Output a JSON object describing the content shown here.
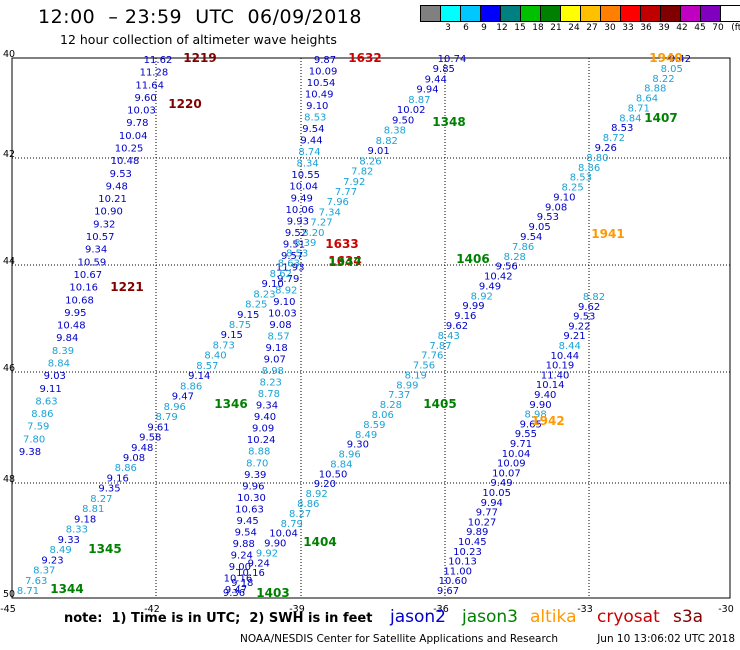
{
  "header": {
    "title": "12:00  – 23:59  UTC  06/09/2018",
    "subtitle": "12 hour collection of altimeter wave heights"
  },
  "colorbar": {
    "colors": [
      "#808080",
      "#00ffff",
      "#00c8ff",
      "#0000ff",
      "#008080",
      "#00c000",
      "#008000",
      "#ffff00",
      "#ffc000",
      "#ff8000",
      "#ff0000",
      "#c00000",
      "#800000",
      "#c000c0",
      "#8000c0",
      "#ffffff",
      "#000000"
    ],
    "labels": [
      "",
      "3",
      "6",
      "9",
      "12",
      "15",
      "18",
      "21",
      "24",
      "27",
      "30",
      "33",
      "36",
      "39",
      "42",
      "45",
      "70"
    ],
    "unit": "(ft)"
  },
  "axes": {
    "lat_labels": [
      "40",
      "42",
      "44",
      "46",
      "48",
      "50"
    ],
    "lon_labels": [
      "-45",
      "-42",
      "-39",
      "-36",
      "-33",
      "-30"
    ]
  },
  "track_colors": {
    "jason2": "#0000c8",
    "jason2_light": "#1aa3d6",
    "jason3": "#008000",
    "altika": "#ff9900",
    "cryosat": "#cc0000",
    "s3a": "#800000"
  },
  "pass_times": [
    {
      "text": "1219",
      "color": "s3a"
    },
    {
      "text": "1220",
      "color": "s3a"
    },
    {
      "text": "1221",
      "color": "s3a"
    },
    {
      "text": "1632",
      "color": "cryosat"
    },
    {
      "text": "1633",
      "color": "cryosat"
    },
    {
      "text": "1634",
      "color": "cryosat"
    },
    {
      "text": "1348",
      "color": "jason3"
    },
    {
      "text": "1347",
      "color": "jason3"
    },
    {
      "text": "1346",
      "color": "jason3"
    },
    {
      "text": "1345",
      "color": "jason3"
    },
    {
      "text": "1344",
      "color": "jason3"
    },
    {
      "text": "1405",
      "color": "jason3"
    },
    {
      "text": "1404",
      "color": "jason3"
    },
    {
      "text": "1403",
      "color": "jason3"
    },
    {
      "text": "1406",
      "color": "jason3"
    },
    {
      "text": "1407",
      "color": "jason3"
    },
    {
      "text": "1940",
      "color": "altika"
    },
    {
      "text": "1941",
      "color": "altika"
    },
    {
      "text": "1942",
      "color": "altika"
    }
  ],
  "tracks": {
    "s3a_track": [
      {
        "v": "11.62",
        "c": "d"
      },
      {
        "v": "11.28",
        "c": "d"
      },
      {
        "v": "11.64",
        "c": "d"
      },
      {
        "v": "9.60",
        "c": "d"
      },
      {
        "v": "10.03",
        "c": "d"
      },
      {
        "v": "9.78",
        "c": "d"
      },
      {
        "v": "10.04",
        "c": "d"
      },
      {
        "v": "10.25",
        "c": "d"
      },
      {
        "v": "10.48",
        "c": "d"
      },
      {
        "v": "9.53",
        "c": "d"
      },
      {
        "v": "9.48",
        "c": "d"
      },
      {
        "v": "10.21",
        "c": "d"
      },
      {
        "v": "10.90",
        "c": "d"
      },
      {
        "v": "9.32",
        "c": "d"
      },
      {
        "v": "10.57",
        "c": "d"
      },
      {
        "v": "9.34",
        "c": "d"
      },
      {
        "v": "10.59",
        "c": "d"
      },
      {
        "v": "10.67",
        "c": "d"
      },
      {
        "v": "10.16",
        "c": "d"
      },
      {
        "v": "10.68",
        "c": "d"
      },
      {
        "v": "9.95",
        "c": "d"
      },
      {
        "v": "10.48",
        "c": "d"
      },
      {
        "v": "9.84",
        "c": "d"
      },
      {
        "v": "8.39",
        "c": "l"
      },
      {
        "v": "8.84",
        "c": "l"
      },
      {
        "v": "9.03",
        "c": "d"
      },
      {
        "v": "9.11",
        "c": "d"
      },
      {
        "v": "8.63",
        "c": "l"
      },
      {
        "v": "8.86",
        "c": "l"
      },
      {
        "v": "7.59",
        "c": "l"
      },
      {
        "v": "7.80",
        "c": "l"
      },
      {
        "v": "9.38",
        "c": "d"
      }
    ],
    "cryosat_track": [
      {
        "v": "9.87",
        "c": "d"
      },
      {
        "v": "10.09",
        "c": "d"
      },
      {
        "v": "10.54",
        "c": "d"
      },
      {
        "v": "10.49",
        "c": "d"
      },
      {
        "v": "9.10",
        "c": "d"
      },
      {
        "v": "8.53",
        "c": "l"
      },
      {
        "v": "9.54",
        "c": "d"
      },
      {
        "v": "9.44",
        "c": "d"
      },
      {
        "v": "8.74",
        "c": "l"
      },
      {
        "v": "8.34",
        "c": "l"
      },
      {
        "v": "10.55",
        "c": "d"
      },
      {
        "v": "10.04",
        "c": "d"
      },
      {
        "v": "9.49",
        "c": "d"
      },
      {
        "v": "10.06",
        "c": "d"
      },
      {
        "v": "9.93",
        "c": "d"
      },
      {
        "v": "9.52",
        "c": "d"
      },
      {
        "v": "9.51",
        "c": "d"
      },
      {
        "v": "9.57",
        "c": "d"
      },
      {
        "v": "11.93",
        "c": "d"
      },
      {
        "v": "9.79",
        "c": "d"
      },
      {
        "v": "8.92",
        "c": "l"
      },
      {
        "v": "9.10",
        "c": "d"
      },
      {
        "v": "10.03",
        "c": "d"
      },
      {
        "v": "9.08",
        "c": "d"
      },
      {
        "v": "8.57",
        "c": "l"
      },
      {
        "v": "9.18",
        "c": "d"
      },
      {
        "v": "9.07",
        "c": "d"
      },
      {
        "v": "8.98",
        "c": "l"
      },
      {
        "v": "8.23",
        "c": "l"
      },
      {
        "v": "8.78",
        "c": "l"
      },
      {
        "v": "9.34",
        "c": "d"
      },
      {
        "v": "9.40",
        "c": "d"
      },
      {
        "v": "9.09",
        "c": "d"
      },
      {
        "v": "10.24",
        "c": "d"
      },
      {
        "v": "8.88",
        "c": "l"
      },
      {
        "v": "8.70",
        "c": "l"
      },
      {
        "v": "9.39",
        "c": "d"
      },
      {
        "v": "9.96",
        "c": "d"
      },
      {
        "v": "10.30",
        "c": "d"
      },
      {
        "v": "10.63",
        "c": "d"
      },
      {
        "v": "9.45",
        "c": "d"
      },
      {
        "v": "9.54",
        "c": "d"
      },
      {
        "v": "9.88",
        "c": "d"
      },
      {
        "v": "9.24",
        "c": "d"
      },
      {
        "v": "9.00",
        "c": "d"
      },
      {
        "v": "10.16",
        "c": "d"
      },
      {
        "v": "9.47",
        "c": "d"
      }
    ],
    "j3_track_a": [
      {
        "v": "8.71",
        "c": "l"
      },
      {
        "v": "7.63",
        "c": "l"
      },
      {
        "v": "8.37",
        "c": "l"
      },
      {
        "v": "9.23",
        "c": "d"
      },
      {
        "v": "8.49",
        "c": "l"
      },
      {
        "v": "9.33",
        "c": "d"
      },
      {
        "v": "8.33",
        "c": "l"
      },
      {
        "v": "9.18",
        "c": "d"
      },
      {
        "v": "8.81",
        "c": "l"
      },
      {
        "v": "8.27",
        "c": "l"
      },
      {
        "v": "9.35",
        "c": "d"
      },
      {
        "v": "9.16",
        "c": "d"
      },
      {
        "v": "8.86",
        "c": "l"
      },
      {
        "v": "9.08",
        "c": "d"
      },
      {
        "v": "9.48",
        "c": "d"
      },
      {
        "v": "9.58",
        "c": "d"
      },
      {
        "v": "9.61",
        "c": "d"
      },
      {
        "v": "8.79",
        "c": "l"
      },
      {
        "v": "8.96",
        "c": "l"
      },
      {
        "v": "9.47",
        "c": "d"
      },
      {
        "v": "8.86",
        "c": "l"
      },
      {
        "v": "9.14",
        "c": "d"
      },
      {
        "v": "8.57",
        "c": "l"
      },
      {
        "v": "8.40",
        "c": "l"
      },
      {
        "v": "8.73",
        "c": "l"
      },
      {
        "v": "9.15",
        "c": "d"
      },
      {
        "v": "8.75",
        "c": "l"
      },
      {
        "v": "9.15",
        "c": "d"
      },
      {
        "v": "8.25",
        "c": "l"
      },
      {
        "v": "8.23",
        "c": "l"
      },
      {
        "v": "9.10",
        "c": "d"
      },
      {
        "v": "8.62",
        "c": "l"
      },
      {
        "v": "8.63",
        "c": "l"
      },
      {
        "v": "8.53",
        "c": "l"
      },
      {
        "v": "8.39",
        "c": "l"
      },
      {
        "v": "8.20",
        "c": "l"
      },
      {
        "v": "7.27",
        "c": "l"
      },
      {
        "v": "7.34",
        "c": "l"
      },
      {
        "v": "7.96",
        "c": "l"
      },
      {
        "v": "7.77",
        "c": "l"
      },
      {
        "v": "7.92",
        "c": "l"
      },
      {
        "v": "7.82",
        "c": "l"
      },
      {
        "v": "8.26",
        "c": "l"
      },
      {
        "v": "9.01",
        "c": "d"
      },
      {
        "v": "8.82",
        "c": "l"
      },
      {
        "v": "8.38",
        "c": "l"
      },
      {
        "v": "9.50",
        "c": "d"
      },
      {
        "v": "10.02",
        "c": "d"
      },
      {
        "v": "8.87",
        "c": "l"
      },
      {
        "v": "9.94",
        "c": "d"
      },
      {
        "v": "9.44",
        "c": "d"
      },
      {
        "v": "9.85",
        "c": "d"
      },
      {
        "v": "10.74",
        "c": "d"
      }
    ],
    "j3_track_b": [
      {
        "v": "9.36",
        "c": "d"
      },
      {
        "v": "9.18",
        "c": "d"
      },
      {
        "v": "10.16",
        "c": "d"
      },
      {
        "v": "9.24",
        "c": "d"
      },
      {
        "v": "9.92",
        "c": "l"
      },
      {
        "v": "9.90",
        "c": "d"
      },
      {
        "v": "10.04",
        "c": "d"
      },
      {
        "v": "8.79",
        "c": "l"
      },
      {
        "v": "8.27",
        "c": "l"
      },
      {
        "v": "8.86",
        "c": "l"
      },
      {
        "v": "8.92",
        "c": "l"
      },
      {
        "v": "9.20",
        "c": "d"
      },
      {
        "v": "10.50",
        "c": "d"
      },
      {
        "v": "8.84",
        "c": "l"
      },
      {
        "v": "8.96",
        "c": "l"
      },
      {
        "v": "9.30",
        "c": "d"
      },
      {
        "v": "8.49",
        "c": "l"
      },
      {
        "v": "8.59",
        "c": "l"
      },
      {
        "v": "8.06",
        "c": "l"
      },
      {
        "v": "8.28",
        "c": "l"
      },
      {
        "v": "7.37",
        "c": "l"
      },
      {
        "v": "8.99",
        "c": "l"
      },
      {
        "v": "8.19",
        "c": "l"
      },
      {
        "v": "7.56",
        "c": "l"
      },
      {
        "v": "7.76",
        "c": "l"
      },
      {
        "v": "7.87",
        "c": "l"
      },
      {
        "v": "8.43",
        "c": "l"
      },
      {
        "v": "9.62",
        "c": "d"
      },
      {
        "v": "9.16",
        "c": "d"
      },
      {
        "v": "9.99",
        "c": "d"
      },
      {
        "v": "8.92",
        "c": "l"
      },
      {
        "v": "9.49",
        "c": "d"
      },
      {
        "v": "10.42",
        "c": "d"
      },
      {
        "v": "9.56",
        "c": "d"
      },
      {
        "v": "8.28",
        "c": "l"
      },
      {
        "v": "7.86",
        "c": "l"
      },
      {
        "v": "9.54",
        "c": "d"
      },
      {
        "v": "9.05",
        "c": "d"
      },
      {
        "v": "9.53",
        "c": "d"
      },
      {
        "v": "9.08",
        "c": "d"
      },
      {
        "v": "9.10",
        "c": "d"
      },
      {
        "v": "8.25",
        "c": "l"
      },
      {
        "v": "8.53",
        "c": "l"
      },
      {
        "v": "8.86",
        "c": "l"
      },
      {
        "v": "8.80",
        "c": "l"
      },
      {
        "v": "9.26",
        "c": "d"
      },
      {
        "v": "8.72",
        "c": "l"
      },
      {
        "v": "8.53",
        "c": "d"
      },
      {
        "v": "8.84",
        "c": "l"
      },
      {
        "v": "8.71",
        "c": "l"
      },
      {
        "v": "8.64",
        "c": "l"
      },
      {
        "v": "8.88",
        "c": "l"
      },
      {
        "v": "8.22",
        "c": "l"
      },
      {
        "v": "8.05",
        "c": "l"
      },
      {
        "v": "9.42",
        "c": "d"
      }
    ],
    "j2_track": [
      {
        "v": "9.67",
        "c": "d"
      },
      {
        "v": "10.60",
        "c": "d"
      },
      {
        "v": "11.00",
        "c": "d"
      },
      {
        "v": "10.13",
        "c": "d"
      },
      {
        "v": "10.23",
        "c": "d"
      },
      {
        "v": "10.45",
        "c": "d"
      },
      {
        "v": "9.89",
        "c": "d"
      },
      {
        "v": "10.27",
        "c": "d"
      },
      {
        "v": "9.77",
        "c": "d"
      },
      {
        "v": "9.94",
        "c": "d"
      },
      {
        "v": "10.05",
        "c": "d"
      },
      {
        "v": "9.49",
        "c": "d"
      },
      {
        "v": "10.07",
        "c": "d"
      },
      {
        "v": "10.09",
        "c": "d"
      },
      {
        "v": "10.04",
        "c": "d"
      },
      {
        "v": "9.71",
        "c": "d"
      },
      {
        "v": "9.55",
        "c": "d"
      },
      {
        "v": "9.65",
        "c": "d"
      },
      {
        "v": "8.98",
        "c": "l"
      },
      {
        "v": "9.90",
        "c": "d"
      },
      {
        "v": "9.40",
        "c": "d"
      },
      {
        "v": "10.14",
        "c": "d"
      },
      {
        "v": "11.40",
        "c": "d"
      },
      {
        "v": "10.19",
        "c": "d"
      },
      {
        "v": "10.44",
        "c": "d"
      },
      {
        "v": "8.44",
        "c": "l"
      },
      {
        "v": "9.21",
        "c": "d"
      },
      {
        "v": "9.22",
        "c": "d"
      },
      {
        "v": "9.53",
        "c": "d"
      },
      {
        "v": "9.62",
        "c": "d"
      },
      {
        "v": "8.82",
        "c": "l"
      }
    ]
  },
  "note": "note:  1) Time is in UTC;  2) SWH is in feet",
  "legend": [
    {
      "label": "jason2",
      "color": "jason2"
    },
    {
      "label": "jason3",
      "color": "jason3"
    },
    {
      "label": "altika",
      "color": "altika"
    },
    {
      "label": "cryosat",
      "color": "cryosat"
    },
    {
      "label": "s3a",
      "color": "s3a"
    }
  ],
  "footer": {
    "org": "NOAA/NESDIS Center for Satellite Applications and Research",
    "timestamp": "Jun 10 13:06:02 UTC 2018"
  }
}
